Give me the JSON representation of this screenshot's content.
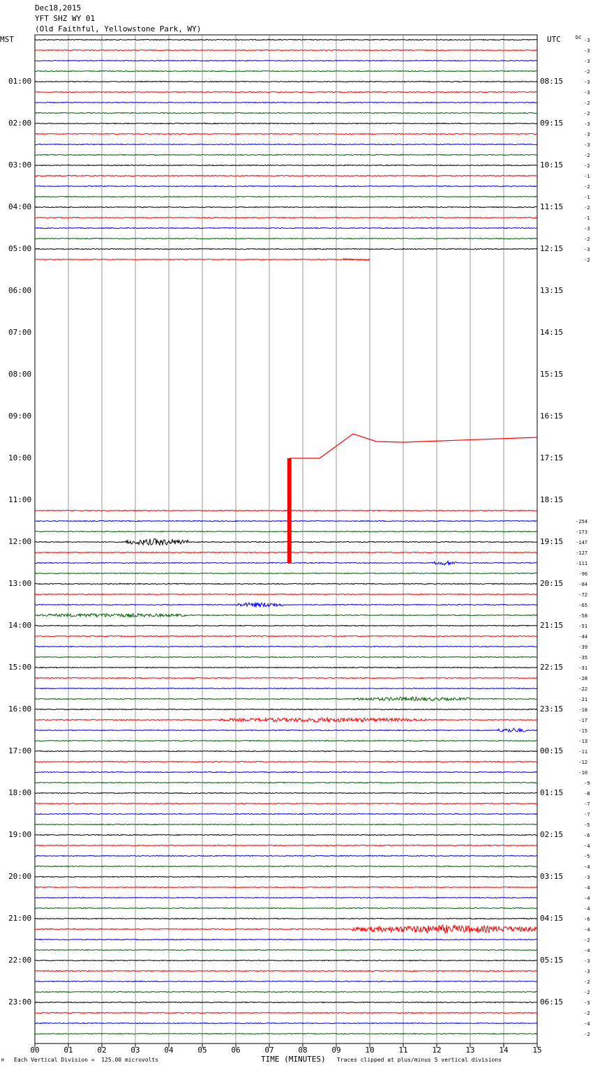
{
  "header": {
    "date": "Dec18,2015",
    "station": "YFT SHZ WY 01",
    "location": "(Old Faithful, Yellowstone Park, WY)"
  },
  "left_axis_label": "MST",
  "right_axis_label": "UTC",
  "dc_label": "DC",
  "footer": {
    "scale_note": "Each Vertical Division =  125.00 microvolts",
    "x_title": "TIME (MINUTES)",
    "clip_note": "Traces clipped at plus/minus 5 vertical divisions",
    "corner_mark": "M"
  },
  "trace_colors": [
    "#000000",
    "#ff0000",
    "#0000ff",
    "#006400"
  ],
  "chart_data": {
    "type": "line",
    "title": "",
    "xlabel": "TIME (MINUTES)",
    "x_ticks": [
      "00",
      "01",
      "02",
      "03",
      "04",
      "05",
      "06",
      "07",
      "08",
      "09",
      "10",
      "11",
      "12",
      "13",
      "14",
      "15"
    ],
    "xlim": [
      0,
      15
    ],
    "minutes_per_line": 15,
    "lines_per_hour": 4,
    "mst_hour_labels": [
      "01:00",
      "02:00",
      "03:00",
      "04:00",
      "05:00",
      "06:00",
      "07:00",
      "08:00",
      "09:00",
      "10:00",
      "11:00",
      "12:00",
      "13:00",
      "14:00",
      "15:00",
      "16:00",
      "17:00",
      "18:00",
      "19:00",
      "20:00",
      "21:00",
      "22:00",
      "23:00"
    ],
    "utc_hour_labels": [
      "08:15",
      "09:15",
      "10:15",
      "11:15",
      "12:15",
      "13:15",
      "14:15",
      "15:15",
      "16:15",
      "17:15",
      "18:15",
      "19:15",
      "20:15",
      "21:15",
      "22:15",
      "23:15",
      "00:15",
      "01:15",
      "02:15",
      "03:15",
      "04:15",
      "05:15",
      "06:15"
    ],
    "dc_offsets": [
      {
        "line": 0,
        "value": "-3"
      },
      {
        "line": 1,
        "value": "-3"
      },
      {
        "line": 2,
        "value": "-3"
      },
      {
        "line": 3,
        "value": "-2"
      },
      {
        "line": 4,
        "value": "-3"
      },
      {
        "line": 5,
        "value": "-3"
      },
      {
        "line": 6,
        "value": "-2"
      },
      {
        "line": 7,
        "value": "-2"
      },
      {
        "line": 8,
        "value": "-3"
      },
      {
        "line": 9,
        "value": "-3"
      },
      {
        "line": 10,
        "value": "-3"
      },
      {
        "line": 11,
        "value": "-2"
      },
      {
        "line": 12,
        "value": "-2"
      },
      {
        "line": 13,
        "value": "-1"
      },
      {
        "line": 14,
        "value": "-2"
      },
      {
        "line": 15,
        "value": "-1"
      },
      {
        "line": 16,
        "value": "-2"
      },
      {
        "line": 17,
        "value": "-1"
      },
      {
        "line": 18,
        "value": "-3"
      },
      {
        "line": 19,
        "value": "-2"
      },
      {
        "line": 20,
        "value": "-3"
      },
      {
        "line": 21,
        "value": "-2"
      },
      {
        "line": 46,
        "value": "-254"
      },
      {
        "line": 47,
        "value": "-173"
      },
      {
        "line": 48,
        "value": "-147"
      },
      {
        "line": 49,
        "value": "-127"
      },
      {
        "line": 50,
        "value": "-111"
      },
      {
        "line": 51,
        "value": "-96"
      },
      {
        "line": 52,
        "value": "-84"
      },
      {
        "line": 53,
        "value": "-72"
      },
      {
        "line": 54,
        "value": "-65"
      },
      {
        "line": 55,
        "value": "-58"
      },
      {
        "line": 56,
        "value": "-51"
      },
      {
        "line": 57,
        "value": "-44"
      },
      {
        "line": 58,
        "value": "-39"
      },
      {
        "line": 59,
        "value": "-35"
      },
      {
        "line": 60,
        "value": "-31"
      },
      {
        "line": 61,
        "value": "-28"
      },
      {
        "line": 62,
        "value": "-22"
      },
      {
        "line": 63,
        "value": "-21"
      },
      {
        "line": 64,
        "value": "-18"
      },
      {
        "line": 65,
        "value": "-17"
      },
      {
        "line": 66,
        "value": "-15"
      },
      {
        "line": 67,
        "value": "-13"
      },
      {
        "line": 68,
        "value": "-11"
      },
      {
        "line": 69,
        "value": "-12"
      },
      {
        "line": 70,
        "value": "-10"
      },
      {
        "line": 71,
        "value": "-9"
      },
      {
        "line": 72,
        "value": "-8"
      },
      {
        "line": 73,
        "value": "-7"
      },
      {
        "line": 74,
        "value": "-7"
      },
      {
        "line": 75,
        "value": "-5"
      },
      {
        "line": 76,
        "value": "-6"
      },
      {
        "line": 77,
        "value": "-4"
      },
      {
        "line": 78,
        "value": "-5"
      },
      {
        "line": 79,
        "value": "-4"
      },
      {
        "line": 80,
        "value": "-3"
      },
      {
        "line": 81,
        "value": "-4"
      },
      {
        "line": 82,
        "value": "-4"
      },
      {
        "line": 83,
        "value": "-4"
      },
      {
        "line": 84,
        "value": "-6"
      },
      {
        "line": 85,
        "value": "-4"
      },
      {
        "line": 86,
        "value": "-2"
      },
      {
        "line": 87,
        "value": "-4"
      },
      {
        "line": 88,
        "value": "-3"
      },
      {
        "line": 89,
        "value": "-3"
      },
      {
        "line": 90,
        "value": "-2"
      },
      {
        "line": 91,
        "value": "-2"
      },
      {
        "line": 92,
        "value": "-3"
      },
      {
        "line": 93,
        "value": "-2"
      },
      {
        "line": 94,
        "value": "-4"
      },
      {
        "line": 95,
        "value": "-2"
      }
    ],
    "traces": {
      "first_line": 0,
      "last_line_before_gap": 20,
      "partial_line": {
        "line": 21,
        "end_minute": 10
      },
      "resume_line": 46,
      "resume_partial_start": {
        "line": 45,
        "start_minute": 0
      }
    },
    "events": [
      {
        "line": 48,
        "start_minute": 2.7,
        "end_minute": 4.6,
        "amplitude": 1.0
      },
      {
        "line": 50,
        "start_minute": 11.9,
        "end_minute": 12.6,
        "amplitude": 0.6
      },
      {
        "line": 54,
        "start_minute": 6.0,
        "end_minute": 7.4,
        "amplitude": 0.7
      },
      {
        "line": 55,
        "start_minute": 0.0,
        "end_minute": 4.5,
        "amplitude": 0.5
      },
      {
        "line": 63,
        "start_minute": 9.5,
        "end_minute": 13.0,
        "amplitude": 0.5
      },
      {
        "line": 65,
        "start_minute": 5.5,
        "end_minute": 11.7,
        "amplitude": 0.6
      },
      {
        "line": 66,
        "start_minute": 13.8,
        "end_minute": 14.7,
        "amplitude": 0.6
      },
      {
        "line": 85,
        "start_minute": 9.5,
        "end_minute": 15.0,
        "amplitude": 1.2
      }
    ],
    "clipped_segment": {
      "start_line": 40,
      "end_line": 50,
      "minute": 7.6
    },
    "drift_line": {
      "line": 40,
      "points": [
        [
          7.6,
          0
        ],
        [
          8.5,
          0
        ],
        [
          9.5,
          -3.5
        ],
        [
          10.2,
          -2.4
        ],
        [
          11.0,
          -2.3
        ],
        [
          15.0,
          -3.0
        ]
      ]
    }
  }
}
